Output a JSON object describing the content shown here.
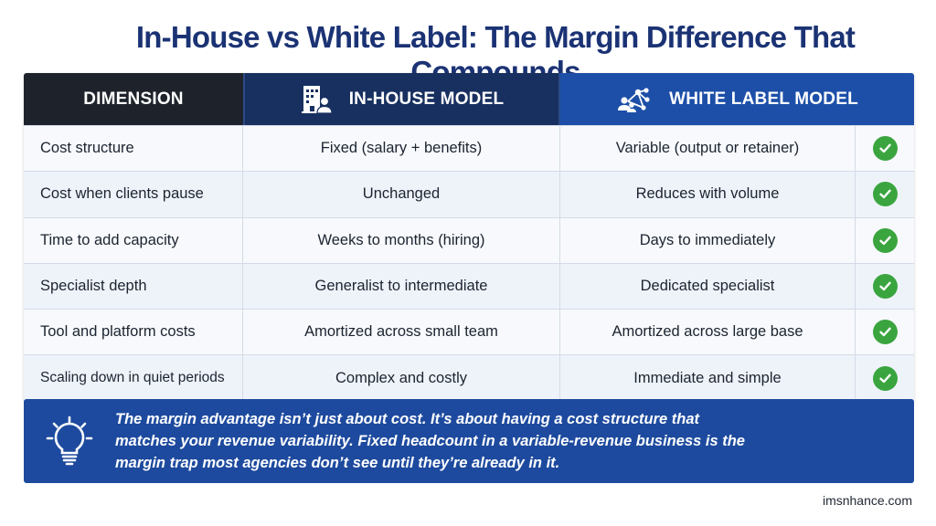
{
  "title": "In-House vs White Label: The Margin Difference That Compounds",
  "columns": {
    "dimension": "DIMENSION",
    "in_house": "IN-HOUSE MODEL",
    "white_label": "WHITE LABEL MODEL"
  },
  "icons": {
    "in_house": "office-building-person-icon",
    "white_label": "network-share-icon",
    "row_status": "check-circle-icon",
    "callout": "lightbulb-icon"
  },
  "colors": {
    "title": "#1b3374",
    "dimension_header": "#1e232b",
    "in_house_header": "#183060",
    "white_label_header": "#1d4fa8",
    "check": "#3aa53f",
    "callout": "#1d4a9e"
  },
  "rows": [
    {
      "dimension": "Cost structure",
      "in_house": "Fixed (salary + benefits)",
      "white_label": "Variable (output or retainer)"
    },
    {
      "dimension": "Cost when clients pause",
      "in_house": "Unchanged",
      "white_label": "Reduces with volume"
    },
    {
      "dimension": "Time to add capacity",
      "in_house": "Weeks to months (hiring)",
      "white_label": "Days to immediately"
    },
    {
      "dimension": "Specialist depth",
      "in_house": "Generalist to intermediate",
      "white_label": "Dedicated specialist"
    },
    {
      "dimension": "Tool and platform costs",
      "in_house": "Amortized across small team",
      "white_label": "Amortized across large base"
    },
    {
      "dimension": "Scaling down in quiet periods",
      "in_house": "Complex and costly",
      "white_label": "Immediate and simple"
    }
  ],
  "callout": {
    "line1": "The margin advantage isn’t just about cost. It’s about having a cost structure that",
    "line2": "matches your revenue variability. Fixed headcount in a variable-revenue business is the",
    "line3": "margin trap most agencies don’t see until they’re already in it."
  },
  "footer": {
    "site": "imsnhance.com"
  }
}
